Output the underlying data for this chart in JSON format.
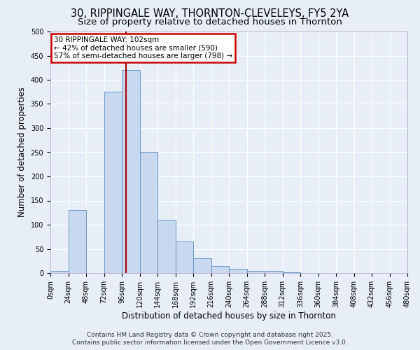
{
  "title": "30, RIPPINGALE WAY, THORNTON-CLEVELEYS, FY5 2YA",
  "subtitle": "Size of property relative to detached houses in Thornton",
  "xlabel": "Distribution of detached houses by size in Thornton",
  "ylabel": "Number of detached properties",
  "bin_edges": [
    0,
    24,
    48,
    72,
    96,
    120,
    144,
    168,
    192,
    216,
    240,
    264,
    288,
    312,
    336,
    360,
    384,
    408,
    432,
    456,
    480
  ],
  "bar_heights": [
    5,
    130,
    0,
    375,
    420,
    250,
    110,
    65,
    30,
    15,
    8,
    5,
    5,
    2,
    0,
    0,
    0,
    0,
    0,
    0
  ],
  "bar_color": "#c8d8ee",
  "bar_edge_color": "#6699cc",
  "vline_x": 102,
  "vline_color": "#aa0000",
  "ylim": [
    0,
    500
  ],
  "xlim": [
    0,
    480
  ],
  "annotation_title": "30 RIPPINGALE WAY: 102sqm",
  "annotation_line1": "← 42% of detached houses are smaller (590)",
  "annotation_line2": "57% of semi-detached houses are larger (798) →",
  "annotation_box_color": "white",
  "annotation_box_edge_color": "#cc0000",
  "footer_line1": "Contains HM Land Registry data © Crown copyright and database right 2025.",
  "footer_line2": "Contains public sector information licensed under the Open Government Licence v3.0.",
  "background_color": "#e8eef8",
  "grid_color": "#ffffff",
  "title_fontsize": 10.5,
  "subtitle_fontsize": 9.5,
  "axis_label_fontsize": 8.5,
  "tick_fontsize": 7,
  "footer_fontsize": 6.5,
  "yticks": [
    0,
    50,
    100,
    150,
    200,
    250,
    300,
    350,
    400,
    450,
    500
  ]
}
